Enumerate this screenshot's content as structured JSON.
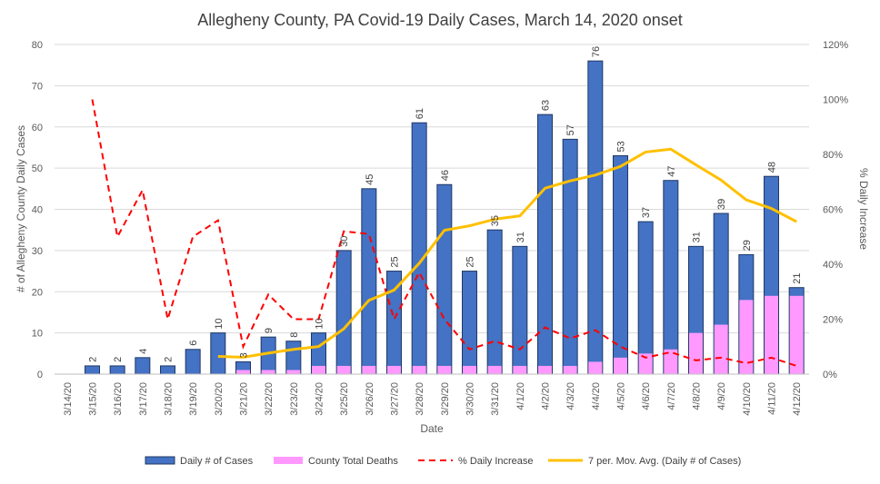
{
  "chart_data": {
    "type": "bar",
    "title": "Allegheny County, PA Covid-19 Daily Cases, March 14, 2020 onset",
    "xlabel": "Date",
    "ylabel": "# of Allegheny County Daily Cases",
    "y2label": "% Daily Increase",
    "ylim": [
      0,
      80
    ],
    "y2lim": [
      0,
      1.2
    ],
    "yticks": [
      "0",
      "10",
      "20",
      "30",
      "40",
      "50",
      "60",
      "70",
      "80"
    ],
    "y2ticks": [
      "0%",
      "20%",
      "40%",
      "60%",
      "80%",
      "100%",
      "120%"
    ],
    "grid": true,
    "legend_position": "bottom",
    "categories": [
      "3/14/20",
      "3/15/20",
      "3/16/20",
      "3/17/20",
      "3/18/20",
      "3/19/20",
      "3/20/20",
      "3/21/20",
      "3/22/20",
      "3/23/20",
      "3/24/20",
      "3/25/20",
      "3/26/20",
      "3/27/20",
      "3/28/20",
      "3/29/20",
      "3/30/20",
      "3/31/20",
      "4/1/20",
      "4/2/20",
      "4/3/20",
      "4/4/20",
      "4/5/20",
      "4/6/20",
      "4/7/20",
      "4/8/20",
      "4/9/20",
      "4/10/20",
      "4/11/20",
      "4/12/20"
    ],
    "series": [
      {
        "name": "Daily # of Cases",
        "kind": "bar",
        "color": "#4472c4",
        "values": [
          0,
          2,
          2,
          4,
          2,
          6,
          10,
          3,
          9,
          8,
          10,
          30,
          45,
          25,
          61,
          46,
          25,
          35,
          31,
          63,
          57,
          76,
          53,
          37,
          47,
          31,
          39,
          29,
          48,
          21
        ],
        "labels": [
          "",
          "2",
          "2",
          "4",
          "2",
          "6",
          "10",
          "3",
          "9",
          "8",
          "10",
          "30",
          "45",
          "25",
          "61",
          "46",
          "25",
          "35",
          "31",
          "63",
          "57",
          "76",
          "53",
          "37",
          "47",
          "31",
          "39",
          "29",
          "48",
          "21"
        ]
      },
      {
        "name": "County Total Deaths",
        "kind": "bar",
        "color": "#ff99ff",
        "values": [
          0,
          0,
          0,
          0,
          0,
          0,
          0,
          1,
          1,
          1,
          2,
          2,
          2,
          2,
          2,
          2,
          2,
          2,
          2,
          2,
          2,
          3,
          4,
          5,
          6,
          10,
          12,
          18,
          19,
          19
        ]
      },
      {
        "name": "% Daily Increase",
        "kind": "line-dashed",
        "axis": "right",
        "color": "#ff0000",
        "values": [
          null,
          1.0,
          0.5,
          0.67,
          0.2,
          0.5,
          0.56,
          0.1,
          0.29,
          0.2,
          0.2,
          0.52,
          0.51,
          0.2,
          0.37,
          0.2,
          0.09,
          0.12,
          0.09,
          0.17,
          0.13,
          0.16,
          0.1,
          0.06,
          0.08,
          0.05,
          0.06,
          0.04,
          0.06,
          0.03
        ]
      },
      {
        "name": "7 per. Mov. Avg. (Daily # of Cases)",
        "kind": "line",
        "color": "#ffc000",
        "values": [
          null,
          null,
          null,
          null,
          null,
          null,
          4.3,
          4.1,
          5.1,
          6,
          6.7,
          11,
          17.9,
          20.4,
          26.9,
          34.9,
          36,
          37.6,
          38.4,
          45.1,
          46.9,
          48.3,
          50.4,
          53.9,
          54.6,
          50.8,
          47.1,
          42.3,
          40.2,
          37
        ]
      }
    ]
  }
}
